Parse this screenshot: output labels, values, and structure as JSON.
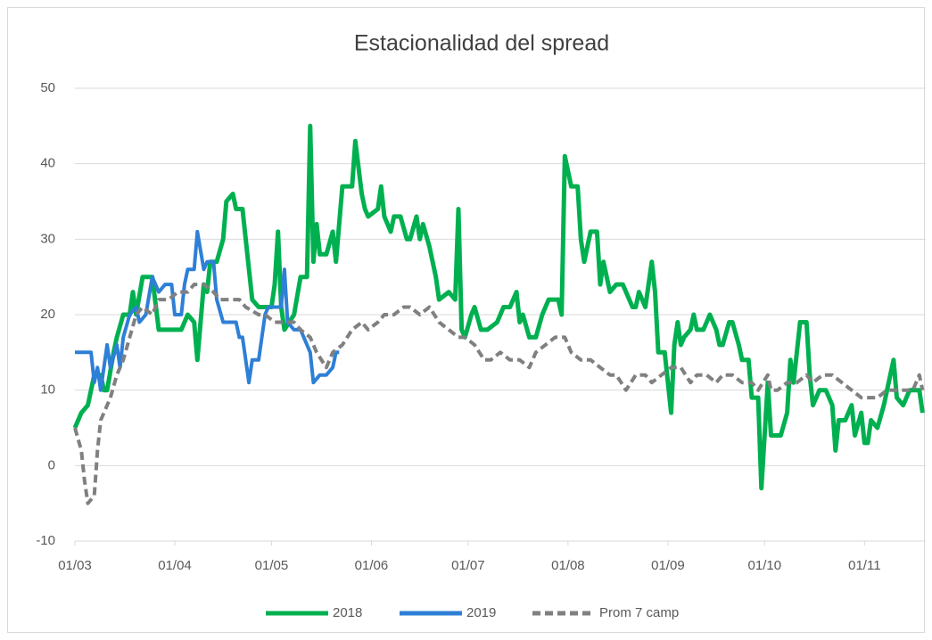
{
  "chart_data": {
    "type": "line",
    "title": "Estacionalidad del spread",
    "xlim": [
      "01/03",
      "20/11"
    ],
    "xticks": [
      "01/03",
      "01/04",
      "01/05",
      "01/06",
      "01/07",
      "01/08",
      "01/09",
      "01/10",
      "01/11"
    ],
    "ylim": [
      -10,
      50
    ],
    "yticks": [
      -10,
      0,
      10,
      20,
      30,
      40,
      50
    ],
    "grid": true,
    "legend": "bottom",
    "series": [
      {
        "name": "2018",
        "color": "#00b050",
        "style": "solid",
        "x": [
          "01/03",
          "03/03",
          "05/03",
          "07/03",
          "09/03",
          "10/03",
          "11/03",
          "13/03",
          "14/03",
          "16/03",
          "18/03",
          "19/03",
          "20/03",
          "22/03",
          "25/03",
          "27/03",
          "29/03",
          "31/03",
          "03/04",
          "05/04",
          "07/04",
          "08/04",
          "10/04",
          "11/04",
          "12/04",
          "14/04",
          "16/04",
          "17/04",
          "19/04",
          "20/04",
          "22/04",
          "23/04",
          "25/04",
          "27/04",
          "29/04",
          "01/05",
          "02/05",
          "03/05",
          "04/05",
          "05/05",
          "08/05",
          "10/05",
          "12/05",
          "13/05",
          "14/05",
          "15/05",
          "16/05",
          "18/05",
          "20/05",
          "21/05",
          "23/05",
          "25/05",
          "26/05",
          "27/05",
          "29/05",
          "30/05",
          "31/05",
          "03/06",
          "04/06",
          "05/06",
          "07/06",
          "08/06",
          "10/06",
          "12/06",
          "13/06",
          "15/06",
          "16/06",
          "17/06",
          "19/06",
          "21/06",
          "22/06",
          "25/06",
          "27/06",
          "28/06",
          "29/06",
          "30/06",
          "02/07",
          "03/07",
          "05/07",
          "07/07",
          "10/07",
          "12/07",
          "14/07",
          "16/07",
          "17/07",
          "18/07",
          "20/07",
          "22/07",
          "24/07",
          "26/07",
          "29/07",
          "30/07",
          "31/07",
          "02/08",
          "04/08",
          "05/08",
          "06/08",
          "08/08",
          "10/08",
          "11/08",
          "12/08",
          "14/08",
          "16/08",
          "18/08",
          "21/08",
          "22/08",
          "23/08",
          "25/08",
          "27/08",
          "28/08",
          "29/08",
          "31/08",
          "02/09",
          "03/09",
          "04/09",
          "05/09",
          "06/09",
          "08/09",
          "09/09",
          "10/09",
          "12/09",
          "14/09",
          "16/09",
          "17/09",
          "18/09",
          "20/09",
          "21/09",
          "23/09",
          "24/09",
          "26/09",
          "27/09",
          "29/09",
          "30/09",
          "02/10",
          "03/10",
          "04/10",
          "06/10",
          "08/10",
          "09/10",
          "10/10",
          "12/10",
          "14/10",
          "15/10",
          "16/10",
          "18/10",
          "20/10",
          "22/10",
          "23/10",
          "24/10",
          "26/10",
          "28/10",
          "29/10",
          "31/10",
          "01/11",
          "02/11",
          "03/11",
          "05/11",
          "07/11",
          "08/11",
          "10/11",
          "11/11",
          "13/11",
          "15/11",
          "18/11",
          "19/11"
        ],
        "values": [
          5,
          7,
          8,
          12,
          12,
          10,
          10,
          15,
          17,
          20,
          20,
          23,
          20,
          25,
          25,
          18,
          18,
          18,
          18,
          20,
          19,
          14,
          24,
          23,
          27,
          27,
          30,
          35,
          36,
          34,
          34,
          30,
          22,
          21,
          21,
          21,
          24,
          31,
          21,
          18,
          20,
          25,
          25,
          45,
          27,
          32,
          28,
          28,
          31,
          27,
          37,
          37,
          37,
          43,
          36,
          34,
          33,
          34,
          37,
          33,
          31,
          33,
          33,
          30,
          30,
          33,
          30,
          32,
          29,
          25,
          22,
          23,
          22,
          34,
          18,
          17,
          20,
          21,
          18,
          18,
          19,
          21,
          21,
          23,
          19,
          20,
          17,
          17,
          20,
          22,
          22,
          20,
          41,
          37,
          37,
          30,
          27,
          31,
          31,
          24,
          27,
          23,
          24,
          24,
          21,
          21,
          23,
          21,
          27,
          23,
          15,
          15,
          7,
          16,
          19,
          16,
          17,
          18,
          20,
          18,
          18,
          20,
          18,
          16,
          16,
          19,
          19,
          16,
          14,
          14,
          9,
          9,
          -3,
          11,
          4,
          4,
          4,
          7,
          14,
          11,
          19,
          19,
          12,
          8,
          10,
          10,
          8,
          2,
          6,
          6,
          8,
          4,
          7,
          3,
          3,
          6,
          5,
          8,
          10,
          14,
          9,
          8,
          10,
          10,
          7
        ]
      },
      {
        "name": "2019",
        "color": "#2e7fd6",
        "style": "solid",
        "x": [
          "01/03",
          "05/03",
          "06/03",
          "07/03",
          "08/03",
          "09/03",
          "11/03",
          "12/03",
          "14/03",
          "15/03",
          "16/03",
          "18/03",
          "20/03",
          "21/03",
          "23/03",
          "25/03",
          "27/03",
          "29/03",
          "31/03",
          "01/04",
          "03/04",
          "04/04",
          "05/04",
          "07/04",
          "08/04",
          "10/04",
          "11/04",
          "13/04",
          "14/04",
          "16/04",
          "18/04",
          "20/04",
          "21/04",
          "22/04",
          "24/04",
          "25/04",
          "27/04",
          "29/04",
          "30/04",
          "03/05",
          "04/05",
          "05/05",
          "06/05",
          "08/05",
          "10/05",
          "12/05",
          "13/05",
          "14/05",
          "16/05",
          "18/05",
          "20/05",
          "21/05",
          "22/05"
        ],
        "values": [
          15,
          15,
          15,
          11,
          13,
          10,
          16,
          13,
          16,
          13,
          17,
          20,
          21,
          19,
          20,
          25,
          23,
          24,
          24,
          20,
          20,
          24,
          26,
          26,
          31,
          26,
          27,
          27,
          22,
          19,
          19,
          19,
          17,
          17,
          11,
          14,
          14,
          20,
          21,
          21,
          21,
          26,
          19,
          18,
          18,
          16,
          15,
          11,
          12,
          12,
          13,
          15,
          15
        ]
      },
      {
        "name": "Prom 7 camp",
        "color": "#808080",
        "style": "dashed",
        "x": [
          "01/03",
          "03/03",
          "04/03",
          "05/03",
          "07/03",
          "08/03",
          "09/03",
          "12/03",
          "14/03",
          "16/03",
          "18/03",
          "20/03",
          "22/03",
          "25/03",
          "27/03",
          "30/03",
          "02/04",
          "05/04",
          "07/04",
          "10/04",
          "13/04",
          "15/04",
          "18/04",
          "21/04",
          "23/04",
          "27/04",
          "29/04",
          "02/05",
          "05/05",
          "08/05",
          "10/05",
          "13/05",
          "15/05",
          "18/05",
          "20/05",
          "23/05",
          "26/05",
          "29/05",
          "31/05",
          "03/06",
          "05/06",
          "08/06",
          "11/06",
          "13/06",
          "16/06",
          "19/06",
          "22/06",
          "25/06",
          "28/06",
          "30/06",
          "03/07",
          "06/07",
          "08/07",
          "11/07",
          "14/07",
          "17/07",
          "20/07",
          "22/07",
          "25/07",
          "28/07",
          "31/07",
          "02/08",
          "05/08",
          "08/08",
          "11/08",
          "14/08",
          "16/08",
          "19/08",
          "22/08",
          "25/08",
          "27/08",
          "30/08",
          "02/09",
          "05/09",
          "08/09",
          "10/09",
          "13/09",
          "16/09",
          "18/09",
          "21/09",
          "24/09",
          "27/09",
          "29/09",
          "02/10",
          "03/10",
          "05/10",
          "08/10",
          "11/10",
          "14/10",
          "16/10",
          "19/10",
          "22/10",
          "25/10",
          "28/10",
          "31/10",
          "02/11",
          "05/11",
          "08/11",
          "10/11",
          "13/11",
          "16/11",
          "18/11",
          "19/11"
        ],
        "values": [
          5,
          2,
          -2,
          -5,
          -4,
          2,
          6,
          9,
          12,
          14,
          17,
          20,
          21,
          20,
          22,
          22,
          23,
          23,
          24,
          24,
          23,
          22,
          22,
          22,
          21,
          20,
          20,
          19,
          19,
          19,
          18,
          17,
          15,
          13,
          15,
          16,
          18,
          19,
          18,
          19,
          20,
          20,
          21,
          21,
          20,
          21,
          19,
          18,
          17,
          17,
          16,
          14,
          14,
          15,
          14,
          14,
          13,
          15,
          16,
          17,
          17,
          15,
          14,
          14,
          13,
          12,
          12,
          10,
          12,
          12,
          11,
          12,
          13,
          13,
          11,
          12,
          12,
          11,
          12,
          12,
          11,
          11,
          10,
          12,
          10,
          10,
          11,
          11,
          12,
          11,
          12,
          12,
          11,
          10,
          9,
          9,
          9,
          10,
          10,
          10,
          10,
          12,
          10
        ]
      }
    ]
  }
}
